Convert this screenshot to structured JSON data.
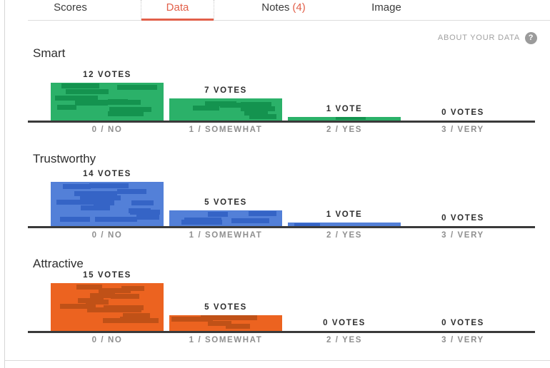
{
  "tabs": [
    {
      "label": "Scores",
      "active": false
    },
    {
      "label": "Data",
      "active": true
    },
    {
      "label": "Notes",
      "count": "(4)",
      "active": false
    },
    {
      "label": "Image",
      "active": false
    }
  ],
  "accent_color": "#e2604a",
  "about": {
    "label": "ABOUT YOUR DATA",
    "help_glyph": "?"
  },
  "chart_data": [
    {
      "type": "bar",
      "title": "Smart",
      "categories": [
        "0 / NO",
        "1 / SOMEWHAT",
        "2 / YES",
        "3 / VERY"
      ],
      "values": [
        12,
        7,
        1,
        0
      ],
      "value_labels": [
        "12 VOTES",
        "7 VOTES",
        "1 VOTE",
        "0 VOTES"
      ],
      "bar_color": "#2bb169",
      "stripe_color": "#14934f",
      "xlabel": "",
      "ylabel": "",
      "grid": false,
      "legend": false
    },
    {
      "type": "bar",
      "title": "Trustworthy",
      "categories": [
        "0 / NO",
        "1 / SOMEWHAT",
        "2 / YES",
        "3 / VERY"
      ],
      "values": [
        14,
        5,
        1,
        0
      ],
      "value_labels": [
        "14 VOTES",
        "5 VOTES",
        "1 VOTE",
        "0 VOTES"
      ],
      "bar_color": "#5380d8",
      "stripe_color": "#3564c6",
      "xlabel": "",
      "ylabel": "",
      "grid": false,
      "legend": false
    },
    {
      "type": "bar",
      "title": "Attractive",
      "categories": [
        "0 / NO",
        "1 / SOMEWHAT",
        "2 / YES",
        "3 / VERY"
      ],
      "values": [
        15,
        5,
        0,
        0
      ],
      "value_labels": [
        "15 VOTES",
        "5 VOTES",
        "0 VOTES",
        "0 VOTES"
      ],
      "bar_color": "#ec6320",
      "stripe_color": "#c05117",
      "xlabel": "",
      "ylabel": "",
      "grid": false,
      "legend": false
    }
  ]
}
